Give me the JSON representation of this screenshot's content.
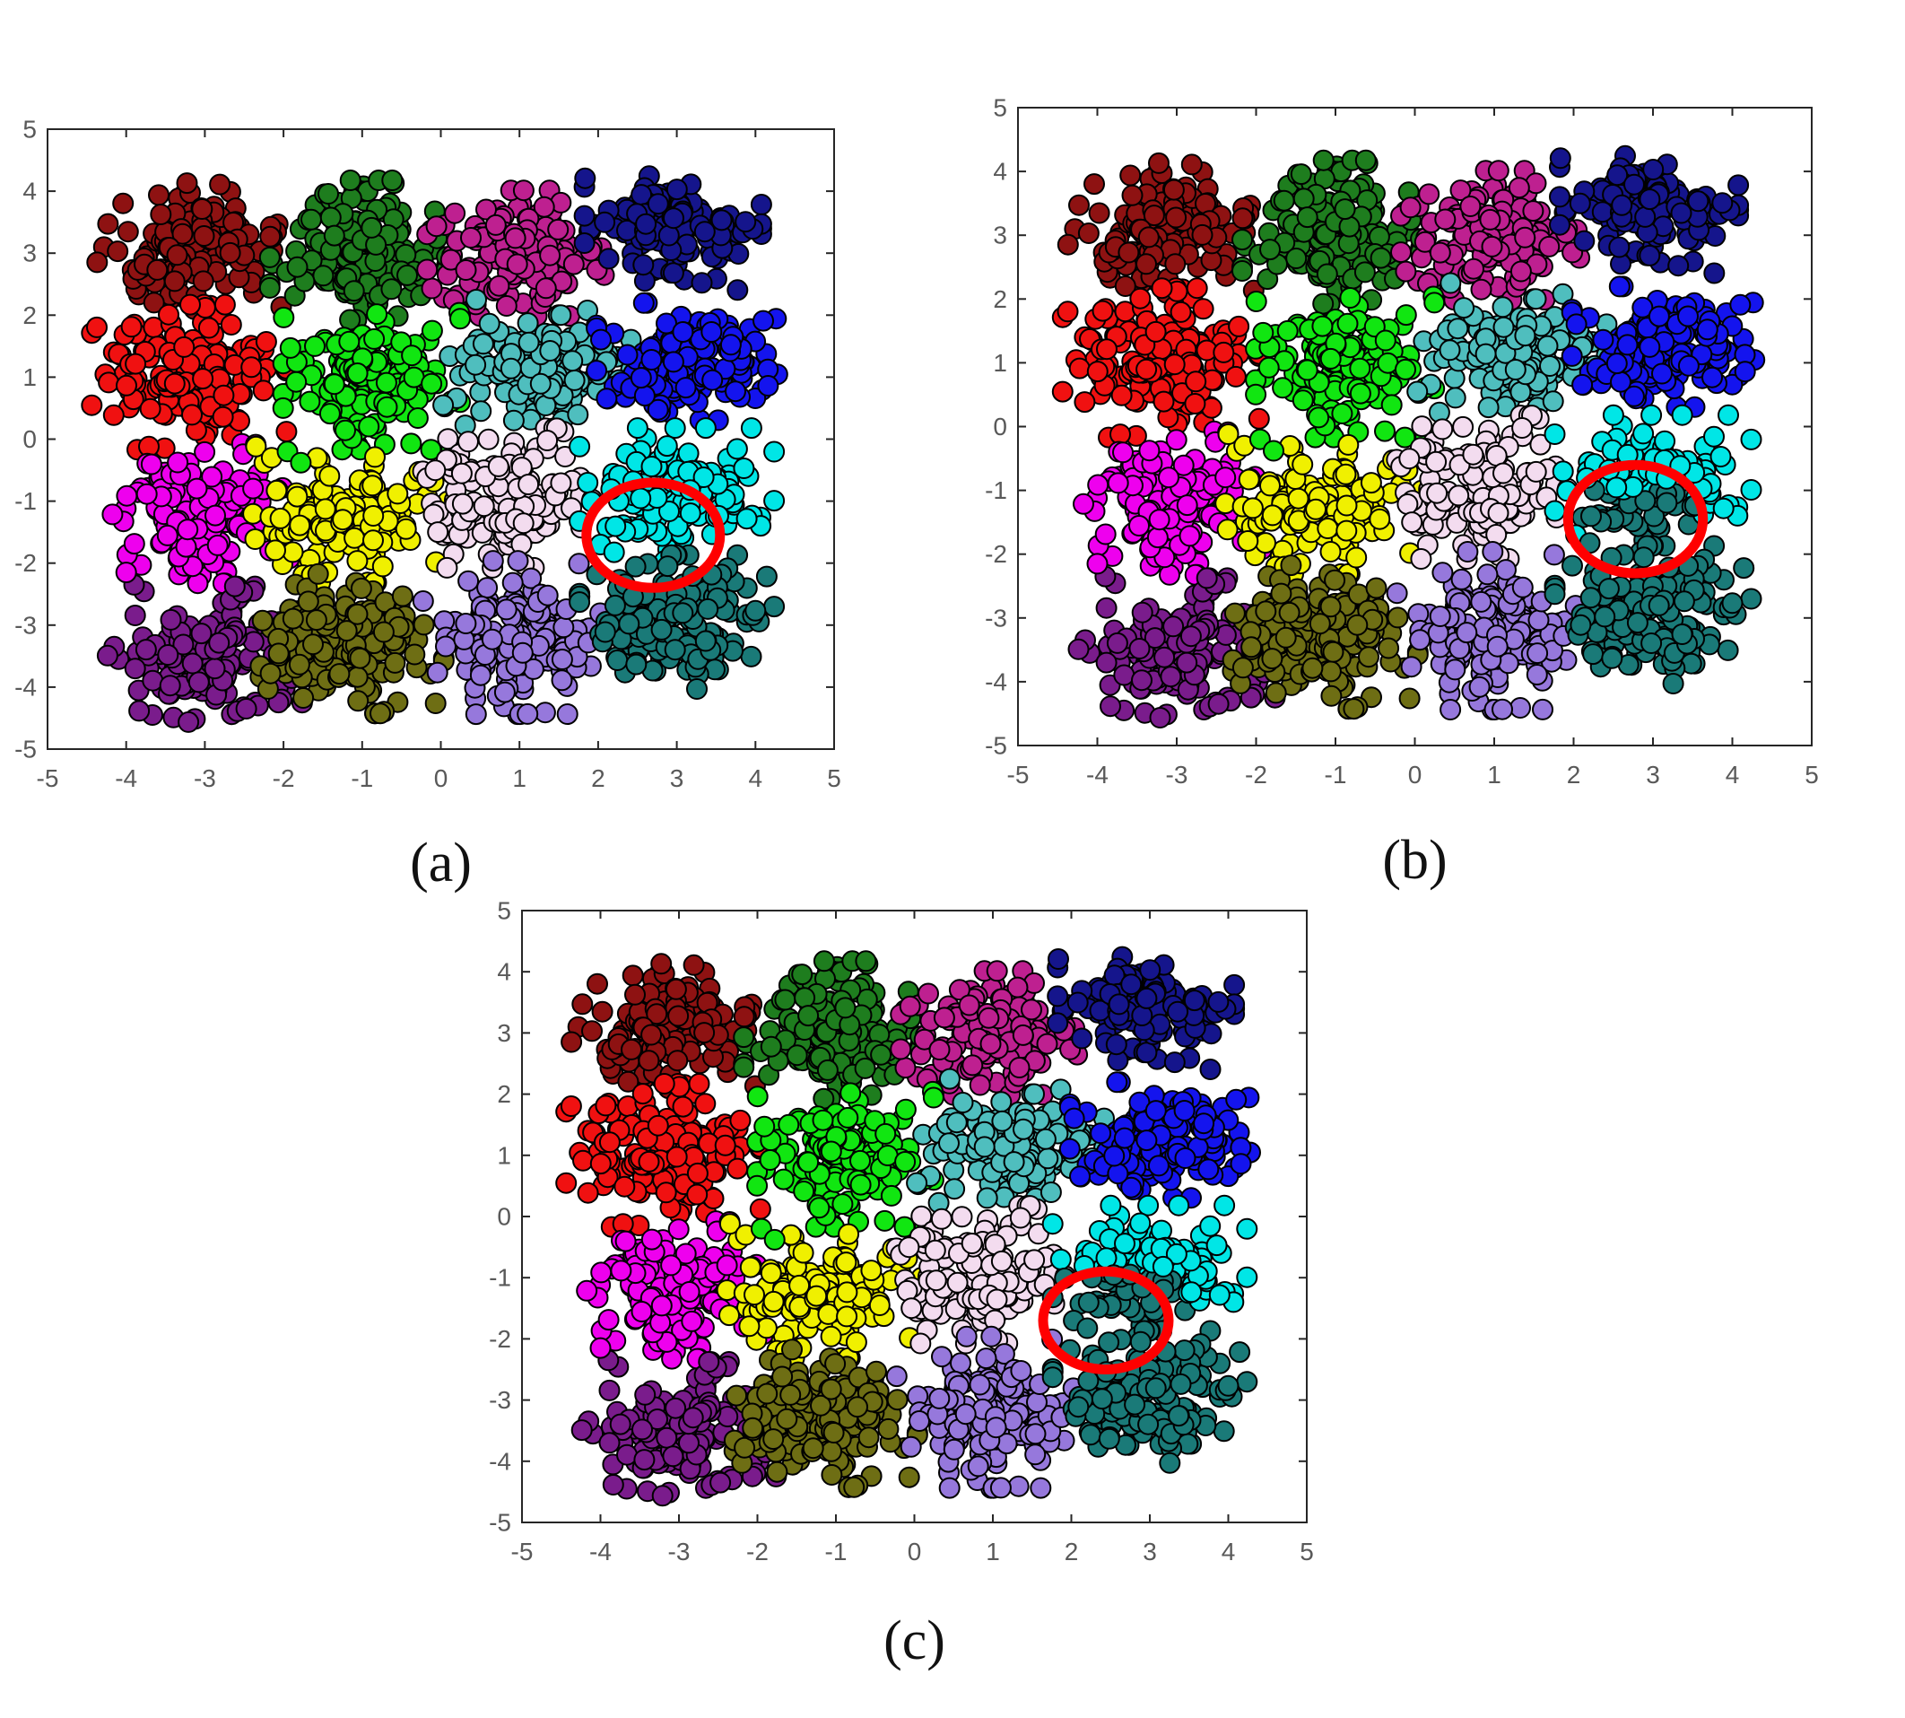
{
  "figure": {
    "background": "#ffffff",
    "description": "Three scatter plots comparing clustering results on the same 2-D dataset; a red circle highlights the cyan/teal cluster boundary region"
  },
  "chart_data": {
    "type": "scatter",
    "title": "",
    "xlabel": "",
    "ylabel": "",
    "xlim": [
      -5,
      5
    ],
    "ylim": [
      -5,
      5
    ],
    "xticks": [
      -5,
      -4,
      -3,
      -2,
      -1,
      0,
      1,
      2,
      3,
      4,
      5
    ],
    "xtick_labels": [
      "-5",
      "-4",
      "-3",
      "-2",
      "-1",
      "0",
      "1",
      "2",
      "3",
      "4",
      "5"
    ],
    "yticks": [
      -5,
      -4,
      -3,
      -2,
      -1,
      0,
      1,
      2,
      3,
      4,
      5
    ],
    "ytick_labels": [
      "-5",
      "-4",
      "-3",
      "-2",
      "-1",
      "0",
      "1",
      "2",
      "3",
      "4",
      "5"
    ],
    "grid": false,
    "legend": false,
    "axis_color": "#262626",
    "tick_label_color": "#595959",
    "tick_font_px": 28,
    "marker": {
      "radius_px": 11,
      "edge_color": "#000000",
      "edge_width": 2
    },
    "annotation_color": "#ff0000",
    "annotation_stroke_px": 11,
    "seed": 12345,
    "clusters": [
      {
        "name": "dark-red",
        "color": "#8E1212",
        "center": [
          -3.2,
          3.05
        ],
        "sigma": [
          0.52,
          0.48
        ],
        "count": 150
      },
      {
        "name": "dark-green",
        "color": "#1E7D1E",
        "center": [
          -1.05,
          3.05
        ],
        "sigma": [
          0.5,
          0.5
        ],
        "count": 150
      },
      {
        "name": "violet-red",
        "color": "#BE2090",
        "center": [
          0.95,
          3.0
        ],
        "sigma": [
          0.5,
          0.45
        ],
        "count": 150
      },
      {
        "name": "navy",
        "color": "#15158C",
        "center": [
          2.95,
          3.35
        ],
        "sigma": [
          0.5,
          0.42
        ],
        "count": 140
      },
      {
        "name": "red",
        "color": "#F01111",
        "center": [
          -3.2,
          1.0
        ],
        "sigma": [
          0.55,
          0.52
        ],
        "count": 160
      },
      {
        "name": "green",
        "color": "#11E611",
        "center": [
          -0.88,
          1.0
        ],
        "sigma": [
          0.5,
          0.52
        ],
        "count": 150
      },
      {
        "name": "cadet-blue",
        "color": "#4FBEBE",
        "center": [
          1.18,
          1.15
        ],
        "sigma": [
          0.55,
          0.48
        ],
        "count": 150
      },
      {
        "name": "blue",
        "color": "#1414EE",
        "center": [
          3.15,
          1.25
        ],
        "sigma": [
          0.52,
          0.42
        ],
        "count": 150
      },
      {
        "name": "magenta",
        "color": "#EE00EE",
        "center": [
          -3.05,
          -1.2
        ],
        "sigma": [
          0.5,
          0.5
        ],
        "count": 140
      },
      {
        "name": "yellow",
        "color": "#F0F000",
        "center": [
          -1.15,
          -1.3
        ],
        "sigma": [
          0.55,
          0.45
        ],
        "count": 150
      },
      {
        "name": "pink",
        "color": "#F3DCEF",
        "center": [
          0.8,
          -0.95
        ],
        "sigma": [
          0.5,
          0.5
        ],
        "count": 150
      },
      {
        "name": "cyan",
        "color": "#00E6E6",
        "center": [
          3.0,
          -0.9
        ],
        "sigma": [
          0.55,
          0.48
        ],
        "count": 140
      },
      {
        "name": "purple",
        "color": "#7A1C8C",
        "center": [
          -3.0,
          -3.5
        ],
        "sigma": [
          0.55,
          0.5
        ],
        "count": 150
      },
      {
        "name": "olive",
        "color": "#6E6E14",
        "center": [
          -1.2,
          -3.3
        ],
        "sigma": [
          0.55,
          0.5
        ],
        "count": 150
      },
      {
        "name": "medium-purple",
        "color": "#9678DC",
        "center": [
          0.9,
          -3.2
        ],
        "sigma": [
          0.5,
          0.55
        ],
        "count": 150
      },
      {
        "name": "teal",
        "color": "#1A7A78",
        "center": [
          3.0,
          -2.95
        ],
        "sigma": [
          0.55,
          0.48
        ],
        "count": 150
      }
    ],
    "extra_points": [
      {
        "cluster": "yellow",
        "x": -2.35,
        "y": -0.12
      },
      {
        "cluster": "yellow",
        "x": -2.15,
        "y": -0.3
      },
      {
        "cluster": "green",
        "x": -1.95,
        "y": -0.2
      },
      {
        "cluster": "green",
        "x": -1.78,
        "y": -0.38
      },
      {
        "cluster": "purple",
        "x": -3.9,
        "y": -2.35
      },
      {
        "cluster": "magenta",
        "x": -4.0,
        "y": -2.15
      },
      {
        "cluster": "cadet-blue",
        "x": 0.45,
        "y": 2.25
      }
    ],
    "panels": [
      {
        "id": "a",
        "caption": "(a)",
        "circle": {
          "cx": 2.7,
          "cy": -1.55,
          "r": 0.85
        },
        "teal_intrusion": null
      },
      {
        "id": "b",
        "caption": "(b)",
        "circle": {
          "cx": 2.78,
          "cy": -1.45,
          "r": 0.85
        },
        "teal_intrusion": {
          "cx": 2.8,
          "cy": -1.45,
          "r": 0.8,
          "ymax": -1.0,
          "recolor_to": "teal"
        }
      },
      {
        "id": "c",
        "caption": "(c)",
        "circle": {
          "cx": 2.44,
          "cy": -1.7,
          "r": 0.8
        },
        "teal_intrusion": {
          "cx": 2.45,
          "cy": -1.55,
          "r": 1.0,
          "ymax": -0.85,
          "recolor_to": "teal"
        }
      }
    ]
  }
}
